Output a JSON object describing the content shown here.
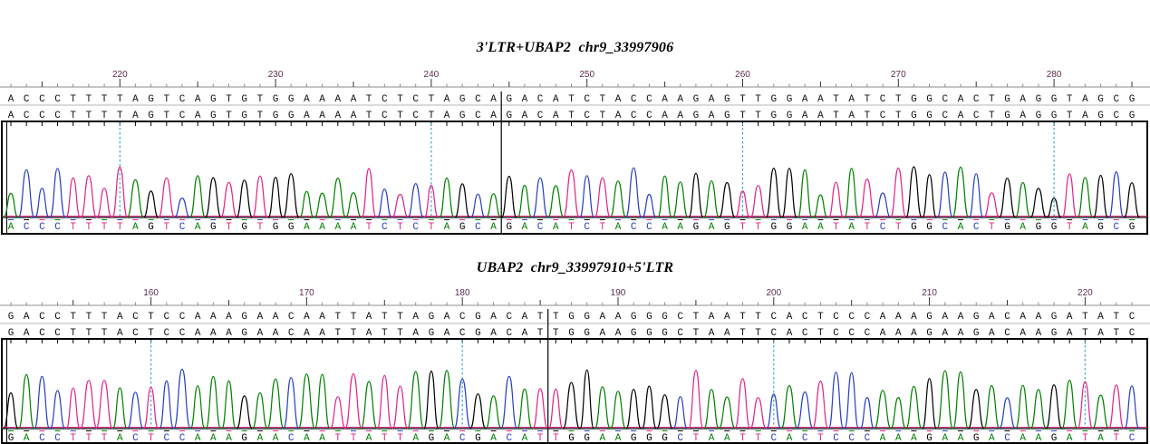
{
  "colors": {
    "A": "#008000",
    "C": "#2640bf",
    "G": "#000000",
    "T": "#e02585",
    "guide_line": "#3aabcd",
    "ruler_numbers": "#5c2d50",
    "sequence_text": "#111111",
    "background": "#ffffff"
  },
  "chart_data": [
    {
      "type": "line",
      "subtype": "sanger_chromatogram_trace",
      "title": "3'LTR+UBAP2  chr9_33997906",
      "x_start": 213,
      "x_end": 285,
      "x_ticks": [
        220,
        230,
        240,
        250,
        260,
        270,
        280
      ],
      "guide_line_positions": [
        220,
        240,
        260,
        280
      ],
      "reference_sequence": "ACCCTTTTAGTCAGTGTGGAAAATCTCTAGCAGACATCTACCAAGAGTTGGAATATCTGGCACTGAGGTAGCG",
      "read_sequence": "ACCCTTTTAGTCAGTGTGGAAAATCTCTAGCAGACATCTACCAAGAGTTGGAATATCTGGCACTGAGGTAGCG",
      "base_call_sequence": "ACCCTTTTAGTCAGTGTGGAAAATCTCTAGCAGACATCTACCAAGAGTTGGAATATCTGGCACTGAGGTAGCG",
      "junction_after_base": 32
    },
    {
      "type": "line",
      "subtype": "sanger_chromatogram_trace",
      "title": "UBAP2  chr9_33997910+5'LTR",
      "x_start": 151,
      "x_end": 223,
      "x_ticks": [
        160,
        170,
        180,
        190,
        200,
        210,
        220
      ],
      "guide_line_positions": [
        160,
        180,
        200,
        220
      ],
      "reference_sequence": "GACCTTTACTCCAAAGAACAATTATTAGACGACATTGGAAGGGCTAATTCACTCCCAAAGAAGACAAGATATC",
      "read_sequence": "GACCTTTACTCCAAAGAACAATTATTAGACGACATTGGAAGGGCTAATTCACTCCCAAAGAAGACAAGATATC",
      "base_call_sequence": "GACCTTTACTCCAAAGAACAATTATTAGACGACATTGGAAGGGCTAATTCACTCCCAAAGAAGACAAGATATC",
      "junction_after_base": 35
    }
  ]
}
